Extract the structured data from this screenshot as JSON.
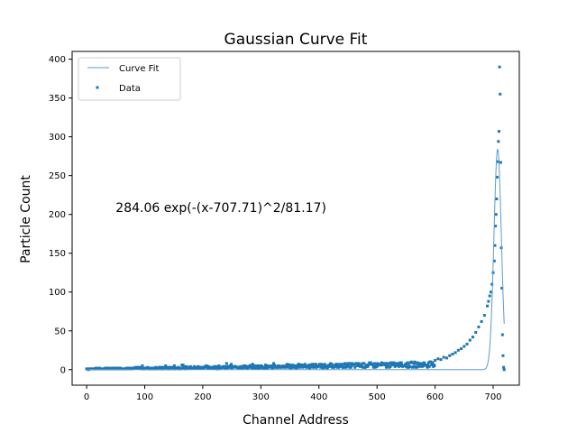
{
  "chart_data": {
    "type": "scatter",
    "title": "Gaussian Curve Fit",
    "xlabel": "Channel Address",
    "ylabel": "Particle Count",
    "xlim": [
      -25,
      745
    ],
    "ylim": [
      -20,
      410
    ],
    "xticks": [
      0,
      100,
      200,
      300,
      400,
      500,
      600,
      700
    ],
    "yticks": [
      0,
      50,
      100,
      150,
      200,
      250,
      300,
      350,
      400
    ],
    "legend": {
      "placement": "top-left",
      "entries": [
        "Curve Fit",
        "Data"
      ]
    },
    "annotation": {
      "text": "284.06 exp(-(x-707.71)^2/81.17)",
      "x": 50,
      "y": 203
    },
    "colors": {
      "series": "#1f77b4",
      "fit": "#5a9bd0"
    },
    "fit": {
      "name": "Curve Fit",
      "amplitude": 284.06,
      "center": 707.71,
      "width_denominator": 81.17,
      "x_range": [
        0,
        719
      ]
    },
    "data_series": {
      "name": "Data",
      "peak_points": [
        [
          600,
          12
        ],
        [
          605,
          14
        ],
        [
          610,
          13
        ],
        [
          615,
          16
        ],
        [
          620,
          15
        ],
        [
          625,
          18
        ],
        [
          630,
          20
        ],
        [
          635,
          22
        ],
        [
          640,
          25
        ],
        [
          645,
          27
        ],
        [
          650,
          30
        ],
        [
          655,
          33
        ],
        [
          660,
          38
        ],
        [
          665,
          42
        ],
        [
          670,
          48
        ],
        [
          675,
          55
        ],
        [
          680,
          62
        ],
        [
          685,
          70
        ],
        [
          690,
          82
        ],
        [
          692,
          88
        ],
        [
          694,
          95
        ],
        [
          696,
          100
        ],
        [
          698,
          110
        ],
        [
          700,
          125
        ],
        [
          702,
          140
        ],
        [
          703,
          160
        ],
        [
          704,
          185
        ],
        [
          705,
          200
        ],
        [
          706,
          220
        ],
        [
          707,
          248
        ],
        [
          708,
          268
        ],
        [
          709,
          294
        ],
        [
          710,
          307
        ],
        [
          711,
          390
        ],
        [
          712,
          355
        ],
        [
          713,
          267
        ],
        [
          714,
          157
        ],
        [
          715,
          105
        ],
        [
          716,
          45
        ],
        [
          717,
          18
        ],
        [
          718,
          3
        ],
        [
          719,
          0
        ]
      ],
      "baseline": {
        "x_start": 0,
        "x_end": 599,
        "level_start": 1,
        "level_end": 8
      }
    }
  }
}
